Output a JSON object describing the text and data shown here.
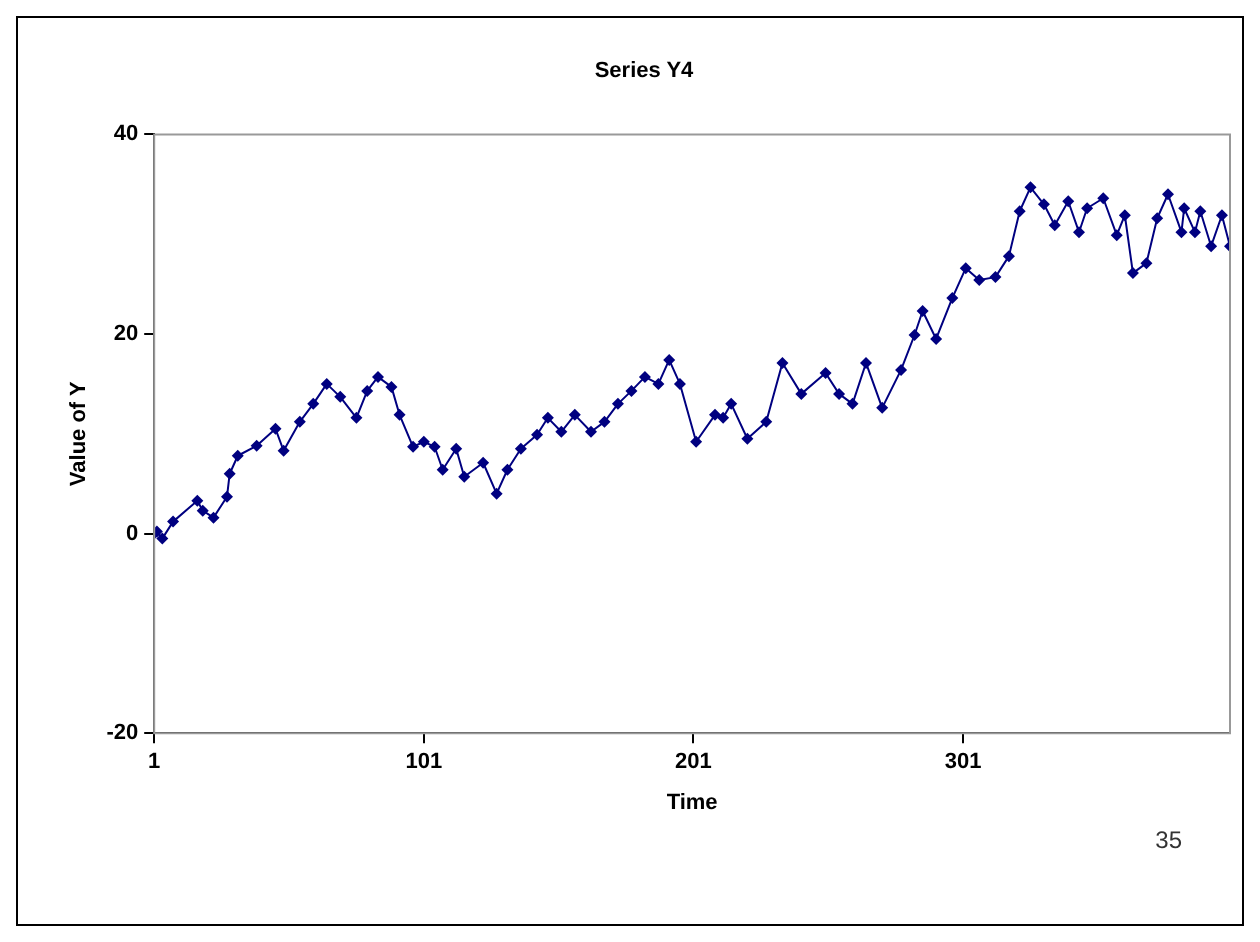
{
  "chart_data": {
    "type": "line",
    "title": "Series Y4",
    "xlabel": "Time",
    "ylabel": "Value of Y",
    "annotations": [
      "35"
    ],
    "x": [
      1,
      2,
      4,
      8,
      17,
      19,
      23,
      28,
      29,
      32,
      39,
      46,
      49,
      55,
      60,
      65,
      70,
      76,
      80,
      84,
      89,
      92,
      97,
      101,
      105,
      108,
      113,
      116,
      123,
      128,
      132,
      137,
      143,
      147,
      152,
      157,
      163,
      168,
      173,
      178,
      183,
      188,
      192,
      196,
      202,
      209,
      212,
      215,
      221,
      228,
      234,
      241,
      250,
      255,
      260,
      265,
      271,
      278,
      283,
      286,
      291,
      297,
      302,
      307,
      313,
      318,
      322,
      326,
      331,
      335,
      340,
      344,
      347,
      353,
      358,
      361,
      364,
      369,
      373,
      377,
      382,
      383,
      387,
      389,
      393,
      397,
      400
    ],
    "series": [
      {
        "color": "#000080",
        "values": [
          0,
          0.2,
          -0.5,
          1.2,
          3.3,
          2.3,
          1.6,
          3.7,
          6,
          7.8,
          8.8,
          10.5,
          8.3,
          11.2,
          13,
          15,
          13.7,
          11.6,
          14.3,
          15.7,
          14.7,
          11.9,
          8.7,
          9.2,
          8.7,
          6.4,
          8.5,
          5.7,
          7.1,
          4,
          6.4,
          8.5,
          9.9,
          11.6,
          10.2,
          11.9,
          10.2,
          11.2,
          13,
          14.3,
          15.7,
          15,
          17.4,
          15,
          9.2,
          11.9,
          11.6,
          13,
          9.5,
          11.2,
          17.1,
          14,
          16.1,
          14,
          13,
          17.1,
          12.6,
          16.4,
          19.9,
          22.3,
          19.5,
          23.6,
          26.6,
          25.4,
          25.7,
          27.8,
          32.3,
          34.7,
          33,
          30.9,
          33.3,
          30.2,
          32.6,
          33.6,
          29.9,
          31.9,
          26.1,
          27.1,
          31.6,
          34,
          30.2,
          32.6,
          30.2,
          32.3,
          28.8,
          31.9,
          28.8
        ]
      }
    ],
    "xlim": [
      1,
      400
    ],
    "xticks": [
      1,
      101,
      201,
      301
    ],
    "ylim": [
      -20,
      40
    ],
    "yticks": [
      -20,
      0,
      20,
      40
    ],
    "grid": false,
    "legend": false,
    "marker": "diamond",
    "line_style": "solid"
  }
}
